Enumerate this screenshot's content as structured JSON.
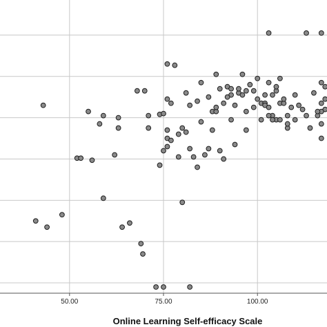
{
  "chart_data": {
    "type": "scatter",
    "xlabel": "Online Learning Self-efficacy Scale",
    "ylabel": "",
    "xlim": [
      31.5,
      118.5
    ],
    "ylim": [
      0,
      7.1
    ],
    "x_ticks": [
      {
        "value": 50,
        "label": "50.00"
      },
      {
        "value": 75,
        "label": "75.00"
      },
      {
        "value": 100,
        "label": "100.00"
      }
    ],
    "y_gridlines": [
      0.25,
      1.25,
      2.25,
      3.25,
      4.25,
      5.25,
      6.25
    ],
    "grid": true,
    "legend": "none",
    "colors": {
      "point_fill": "#8a8a8a",
      "point_stroke": "#1e1e1e",
      "gridline": "#c8c8c8",
      "axis": "#555555"
    },
    "points": [
      [
        103,
        6.3
      ],
      [
        113,
        6.3
      ],
      [
        117,
        6.3
      ],
      [
        76,
        5.55
      ],
      [
        78,
        5.52
      ],
      [
        43,
        4.55
      ],
      [
        41,
        1.75
      ],
      [
        44,
        1.6
      ],
      [
        48,
        1.9
      ],
      [
        52,
        3.27
      ],
      [
        53,
        3.27
      ],
      [
        56,
        3.22
      ],
      [
        55,
        4.4
      ],
      [
        58,
        4.1
      ],
      [
        59,
        2.3
      ],
      [
        59,
        4.3
      ],
      [
        62,
        3.35
      ],
      [
        63,
        4.0
      ],
      [
        63,
        4.25
      ],
      [
        64,
        1.6
      ],
      [
        66,
        1.7
      ],
      [
        68,
        4.9
      ],
      [
        70,
        4.9
      ],
      [
        69,
        1.2
      ],
      [
        69.5,
        0.95
      ],
      [
        71,
        4.3
      ],
      [
        71,
        4.0
      ],
      [
        73,
        0.15
      ],
      [
        74,
        4.33
      ],
      [
        75,
        4.35
      ],
      [
        74,
        3.1
      ],
      [
        75,
        3.45
      ],
      [
        75,
        0.15
      ],
      [
        76,
        3.75
      ],
      [
        76,
        3.55
      ],
      [
        76,
        3.95
      ],
      [
        77,
        3.7
      ],
      [
        76,
        4.7
      ],
      [
        77,
        4.6
      ],
      [
        79,
        3.85
      ],
      [
        79,
        3.3
      ],
      [
        80,
        4.0
      ],
      [
        80,
        2.2
      ],
      [
        81,
        3.9
      ],
      [
        81,
        4.85
      ],
      [
        82,
        4.55
      ],
      [
        82,
        3.5
      ],
      [
        82,
        0.15
      ],
      [
        83,
        3.3
      ],
      [
        84,
        3.05
      ],
      [
        84,
        4.65
      ],
      [
        85,
        5.1
      ],
      [
        85,
        4.15
      ],
      [
        86,
        3.35
      ],
      [
        87,
        3.5
      ],
      [
        87,
        4.75
      ],
      [
        88,
        4.4
      ],
      [
        88,
        3.95
      ],
      [
        89,
        5.3
      ],
      [
        89,
        4.4
      ],
      [
        89,
        4.5
      ],
      [
        90,
        3.45
      ],
      [
        90,
        4.95
      ],
      [
        91,
        4.6
      ],
      [
        91,
        3.25
      ],
      [
        92,
        5.0
      ],
      [
        93,
        4.2
      ],
      [
        93,
        4.95
      ],
      [
        93,
        4.8
      ],
      [
        94,
        3.6
      ],
      [
        95,
        4.85
      ],
      [
        95,
        4.95
      ],
      [
        97,
        4.4
      ],
      [
        97,
        3.95
      ],
      [
        98,
        5.05
      ],
      [
        99,
        4.9
      ],
      [
        100,
        4.7
      ],
      [
        100,
        5.2
      ],
      [
        101,
        4.2
      ],
      [
        101,
        4.6
      ],
      [
        102,
        4.8
      ],
      [
        102,
        4.6
      ],
      [
        102,
        4.55
      ],
      [
        103,
        5.1
      ],
      [
        103,
        4.5
      ],
      [
        104,
        4.8
      ],
      [
        104,
        4.3
      ],
      [
        105,
        4.9
      ],
      [
        105,
        4.2
      ],
      [
        105,
        5.0
      ],
      [
        106,
        5.2
      ],
      [
        106,
        4.6
      ],
      [
        106,
        4.2
      ],
      [
        107,
        4.6
      ],
      [
        107,
        4.7
      ],
      [
        108,
        4.0
      ],
      [
        108,
        4.1
      ],
      [
        109,
        4.5
      ],
      [
        110,
        4.2
      ],
      [
        111,
        4.55
      ],
      [
        112,
        4.45
      ],
      [
        113,
        4.3
      ],
      [
        114,
        4.0
      ],
      [
        115,
        4.85
      ],
      [
        116,
        4.3
      ],
      [
        117,
        4.6
      ],
      [
        117,
        5.1
      ],
      [
        118,
        5.0
      ],
      [
        118,
        4.7
      ],
      [
        118,
        4.45
      ],
      [
        117,
        4.4
      ],
      [
        117,
        4.1
      ],
      [
        117,
        3.75
      ],
      [
        116,
        4.4
      ],
      [
        110,
        4.8
      ],
      [
        108,
        4.3
      ],
      [
        104,
        4.2
      ],
      [
        103,
        4.3
      ],
      [
        99,
        4.5
      ],
      [
        97,
        4.9
      ],
      [
        96,
        5.3
      ],
      [
        96,
        4.8
      ],
      [
        94,
        4.55
      ],
      [
        92,
        4.75
      ]
    ]
  }
}
